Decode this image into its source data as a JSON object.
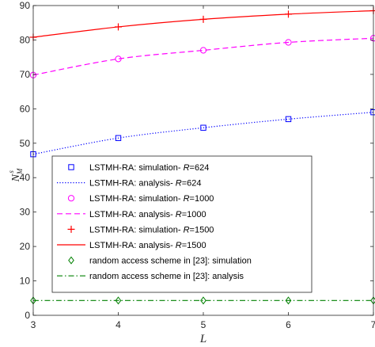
{
  "chart_data": {
    "type": "line",
    "xlabel": "L",
    "ylabel_main": "N",
    "ylabel_sup": "s",
    "ylabel_sub": "M",
    "xlim": [
      3,
      7
    ],
    "ylim": [
      0,
      90
    ],
    "xticks": [
      3,
      4,
      5,
      6,
      7
    ],
    "yticks": [
      0,
      10,
      20,
      30,
      40,
      50,
      60,
      70,
      80,
      90
    ],
    "x": [
      3,
      4,
      5,
      6,
      7
    ],
    "grid": false,
    "legend_position": "middle-left",
    "series": [
      {
        "name_prefix": "LSTMH-RA: simulation- ",
        "name_var": "R",
        "name_suffix": "=624",
        "kind": "markers",
        "marker": "square",
        "color": "#0000ff",
        "values": [
          46.8,
          51.5,
          54.5,
          57.0,
          59.0
        ]
      },
      {
        "name_prefix": "LSTMH-RA: analysis- ",
        "name_var": "R",
        "name_suffix": "=624",
        "kind": "line",
        "dash": "dotted",
        "color": "#0000ff",
        "values": [
          46.8,
          51.5,
          54.5,
          57.0,
          59.0
        ]
      },
      {
        "name_prefix": "LSTMH-RA: simulation- ",
        "name_var": "R",
        "name_suffix": "=1000",
        "kind": "markers",
        "marker": "circle",
        "color": "#ff00ff",
        "values": [
          69.8,
          74.5,
          77.0,
          79.3,
          80.5
        ]
      },
      {
        "name_prefix": "LSTMH-RA: analysis- ",
        "name_var": "R",
        "name_suffix": "=1000",
        "kind": "line",
        "dash": "dashed",
        "color": "#ff00ff",
        "values": [
          69.8,
          74.5,
          77.0,
          79.3,
          80.5
        ]
      },
      {
        "name_prefix": "LSTMH-RA: simulation- ",
        "name_var": "R",
        "name_suffix": "=1500",
        "kind": "markers",
        "marker": "plus",
        "color": "#ff0000",
        "values": [
          80.8,
          83.8,
          86.0,
          87.5,
          88.5
        ]
      },
      {
        "name_prefix": "LSTMH-RA: analysis- ",
        "name_var": "R",
        "name_suffix": "=1500",
        "kind": "line",
        "dash": "solid",
        "color": "#ff0000",
        "values": [
          80.8,
          83.8,
          86.0,
          87.5,
          88.5
        ]
      },
      {
        "name_prefix": "random access scheme in [23]: simulation",
        "name_var": "",
        "name_suffix": "",
        "kind": "markers",
        "marker": "diamond",
        "color": "#008000",
        "values": [
          4.3,
          4.3,
          4.3,
          4.3,
          4.3
        ]
      },
      {
        "name_prefix": "random access scheme in [23]: analysis",
        "name_var": "",
        "name_suffix": "",
        "kind": "line",
        "dash": "dashdot",
        "color": "#008000",
        "values": [
          4.3,
          4.3,
          4.3,
          4.3,
          4.3
        ]
      }
    ]
  }
}
